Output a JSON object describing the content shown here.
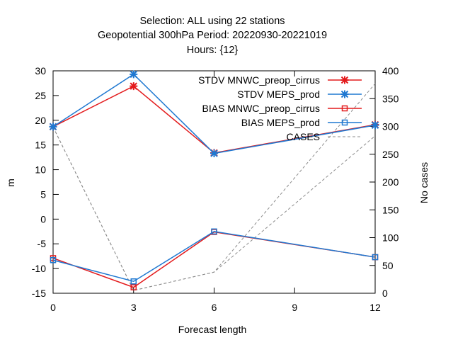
{
  "chart_data": {
    "type": "line",
    "title_lines": [
      "Selection: ALL using    22 stations",
      "Geopotential 300hPa   Period: 20220930-20221019",
      "Hours: {12}"
    ],
    "xlabel": "Forecast length",
    "ylabel": "m",
    "y2label": "No cases",
    "xlim": [
      0,
      12
    ],
    "ylim": [
      -15,
      30
    ],
    "y2lim": [
      0,
      400
    ],
    "xticks": [
      0,
      3,
      6,
      9,
      12
    ],
    "yticks": [
      -15,
      -10,
      -5,
      0,
      5,
      10,
      15,
      20,
      25,
      30
    ],
    "y2ticks": [
      0,
      50,
      100,
      150,
      200,
      250,
      300,
      350,
      400
    ],
    "grid": false,
    "legend_position": "top-right",
    "x": [
      0,
      3,
      6,
      12
    ],
    "series": [
      {
        "name": "STDV MNWC_preop_cirrus",
        "axis": "y1",
        "marker": "star",
        "color": "#e31a1c",
        "values": [
          18.7,
          26.9,
          13.4,
          19.1
        ]
      },
      {
        "name": "STDV MEPS_prod",
        "axis": "y1",
        "marker": "star",
        "color": "#1f78d1",
        "values": [
          18.7,
          29.3,
          13.3,
          19.0
        ]
      },
      {
        "name": "BIAS MNWC_preop_cirrus",
        "axis": "y1",
        "marker": "square",
        "color": "#e31a1c",
        "values": [
          -7.9,
          -13.8,
          -2.6,
          -7.7
        ]
      },
      {
        "name": "BIAS MEPS_prod",
        "axis": "y1",
        "marker": "square",
        "color": "#1f78d1",
        "values": [
          -8.3,
          -12.6,
          -2.5,
          -7.7
        ]
      },
      {
        "name": "CASES",
        "axis": "y2",
        "marker": "none",
        "color": "#8c8c8c",
        "dashed": true,
        "values": [
          299,
          5,
          38,
          377
        ]
      },
      {
        "name": "",
        "axis": "y2",
        "marker": "none",
        "color": "#8c8c8c",
        "dashed": true,
        "values": [
          299,
          5,
          38,
          283
        ]
      }
    ]
  }
}
